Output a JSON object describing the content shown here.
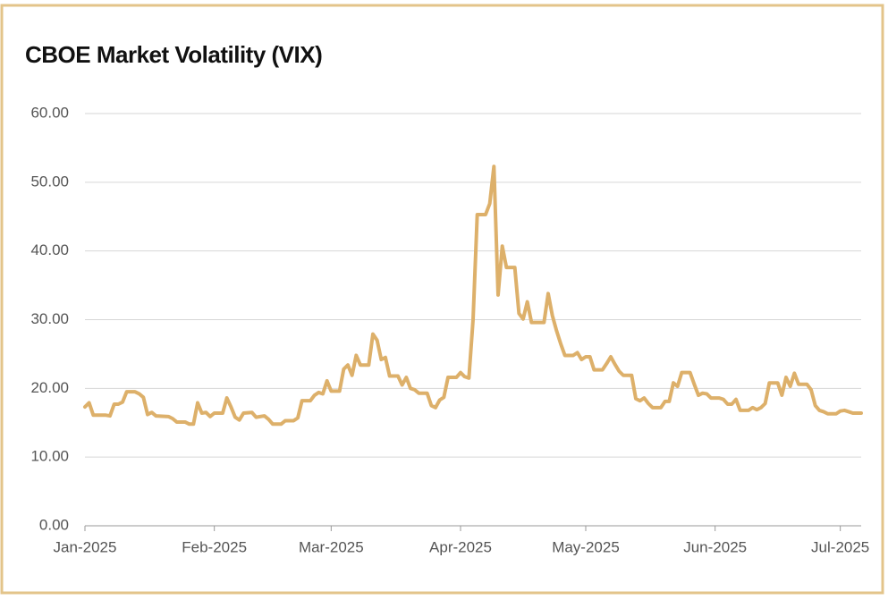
{
  "chart_data": {
    "type": "line",
    "title": "CBOE Market Volatility (VIX)",
    "x": [
      0,
      1,
      2,
      5,
      6,
      7,
      8,
      9,
      10,
      12,
      13,
      14,
      15,
      16,
      17,
      20,
      21,
      22,
      24,
      25,
      26,
      27,
      28,
      29,
      30,
      31,
      33,
      34,
      35,
      36,
      37,
      38,
      40,
      41,
      43,
      44,
      45,
      47,
      48,
      50,
      51,
      52,
      54,
      55,
      56,
      57,
      58,
      59,
      61,
      62,
      63,
      64,
      65,
      66,
      68,
      69,
      70,
      71,
      72,
      73,
      75,
      76,
      77,
      78,
      79,
      80,
      82,
      83,
      84,
      85,
      86,
      87,
      89,
      90,
      91,
      92,
      93,
      94,
      96,
      97,
      98,
      99,
      100,
      101,
      103,
      104,
      105,
      106,
      107,
      110,
      111,
      112,
      113,
      114,
      115,
      117,
      118,
      119,
      120,
      121,
      122,
      124,
      125,
      126,
      127,
      128,
      129,
      131,
      132,
      133,
      134,
      135,
      136,
      138,
      139,
      140,
      141,
      142,
      143,
      145,
      146,
      147,
      148,
      149,
      150,
      152,
      153,
      154,
      155,
      156,
      157,
      159,
      160,
      161,
      162,
      163,
      164,
      166,
      167,
      168,
      169,
      170,
      171,
      173,
      174,
      175,
      176,
      177,
      178,
      180,
      181,
      182,
      183,
      184,
      186
    ],
    "series": [
      {
        "name": "VIX",
        "color": "#ddb06a",
        "values": [
          17.3,
          17.9,
          16.1,
          16.1,
          16.0,
          17.7,
          17.7,
          18.0,
          19.5,
          19.5,
          19.2,
          18.7,
          16.2,
          16.5,
          16.0,
          15.9,
          15.6,
          15.1,
          15.1,
          14.8,
          14.8,
          17.9,
          16.4,
          16.5,
          15.9,
          16.4,
          16.4,
          18.6,
          17.3,
          15.8,
          15.4,
          16.4,
          16.5,
          15.8,
          16.0,
          15.5,
          14.8,
          14.8,
          15.3,
          15.3,
          15.7,
          18.2,
          18.2,
          19.0,
          19.4,
          19.2,
          21.1,
          19.6,
          19.6,
          22.8,
          23.4,
          21.9,
          24.8,
          23.4,
          23.4,
          27.9,
          27.0,
          24.2,
          24.5,
          21.8,
          21.8,
          20.5,
          21.6,
          20.0,
          19.8,
          19.3,
          19.3,
          17.5,
          17.2,
          18.3,
          18.7,
          21.6,
          21.6,
          22.3,
          21.7,
          21.5,
          30.0,
          45.3,
          45.3,
          46.9,
          52.3,
          33.6,
          40.7,
          37.6,
          37.6,
          30.9,
          30.1,
          32.6,
          29.6,
          29.6,
          33.8,
          30.6,
          28.4,
          26.5,
          24.8,
          24.8,
          25.2,
          24.2,
          24.6,
          24.6,
          22.7,
          22.7,
          23.6,
          24.6,
          23.5,
          22.5,
          21.9,
          21.9,
          18.5,
          18.2,
          18.6,
          17.8,
          17.2,
          17.2,
          18.1,
          18.1,
          20.8,
          20.3,
          22.3,
          22.3,
          20.6,
          19.0,
          19.3,
          19.2,
          18.6,
          18.6,
          18.4,
          17.7,
          17.7,
          18.4,
          16.8,
          16.8,
          17.2,
          16.9,
          17.2,
          17.8,
          20.8,
          20.8,
          19.0,
          21.6,
          20.3,
          22.2,
          20.6,
          20.6,
          19.8,
          17.5,
          16.8,
          16.6,
          16.3,
          16.3,
          16.7,
          16.8,
          16.6,
          16.4,
          16.4
        ]
      }
    ],
    "xlim": [
      0,
      186
    ],
    "xticks": [
      {
        "value": 0,
        "label": "Jan-2025"
      },
      {
        "value": 31,
        "label": "Feb-2025"
      },
      {
        "value": 59,
        "label": "Mar-2025"
      },
      {
        "value": 90,
        "label": "Apr-2025"
      },
      {
        "value": 120,
        "label": "May-2025"
      },
      {
        "value": 151,
        "label": "Jun-2025"
      },
      {
        "value": 181,
        "label": "Jul-2025"
      }
    ],
    "ylim": [
      0,
      60
    ],
    "yticks": [
      {
        "value": 0,
        "label": "0.00"
      },
      {
        "value": 10,
        "label": "10.00"
      },
      {
        "value": 20,
        "label": "20.00"
      },
      {
        "value": 30,
        "label": "30.00"
      },
      {
        "value": 40,
        "label": "40.00"
      },
      {
        "value": 50,
        "label": "50.00"
      },
      {
        "value": 60,
        "label": "60.00"
      }
    ],
    "grid": true
  }
}
